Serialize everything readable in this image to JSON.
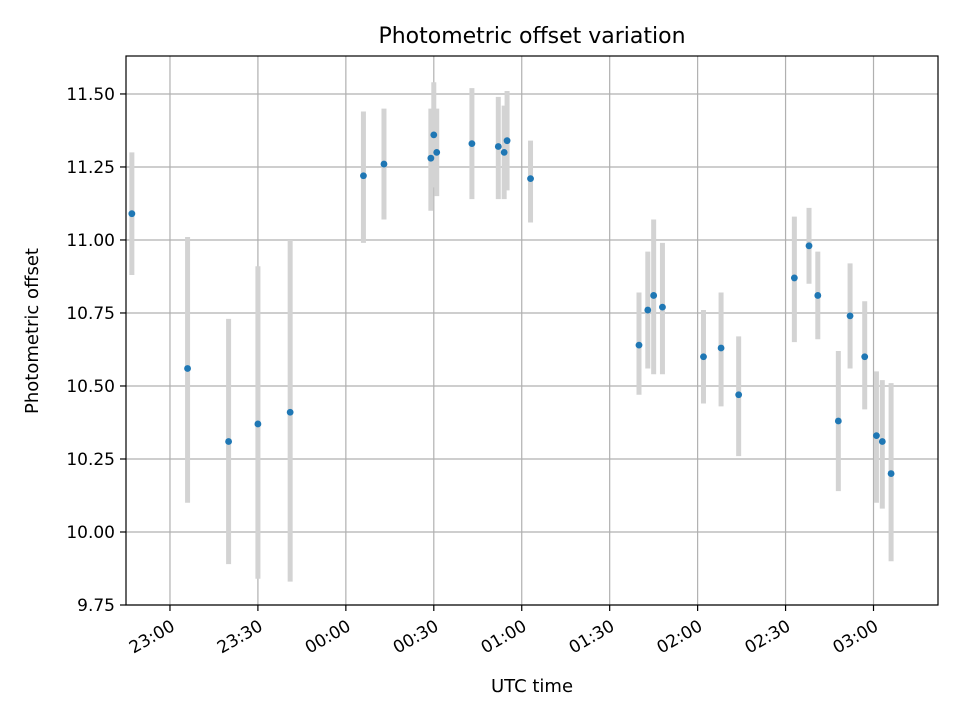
{
  "chart_data": {
    "type": "scatter",
    "title": "Photometric offset variation",
    "xlabel": "UTC time",
    "ylabel": "Photometric offset",
    "x_ticks": [
      "23:00",
      "23:30",
      "00:00",
      "00:30",
      "01:00",
      "01:30",
      "02:00",
      "02:30",
      "03:00"
    ],
    "y_ticks": [
      "9.75",
      "10.00",
      "10.25",
      "10.50",
      "10.75",
      "11.00",
      "11.25",
      "11.50"
    ],
    "ylim": [
      9.75,
      11.63
    ],
    "xlim": [
      "22:45",
      "03:22"
    ],
    "grid": true,
    "points": [
      {
        "x": "22:47",
        "y": 11.09,
        "ylow": 10.88,
        "yhigh": 11.3
      },
      {
        "x": "23:06",
        "y": 10.56,
        "ylow": 10.1,
        "yhigh": 11.01
      },
      {
        "x": "23:20",
        "y": 10.31,
        "ylow": 9.89,
        "yhigh": 10.73
      },
      {
        "x": "23:30",
        "y": 10.37,
        "ylow": 9.84,
        "yhigh": 10.91
      },
      {
        "x": "23:41",
        "y": 10.41,
        "ylow": 9.83,
        "yhigh": 11.0
      },
      {
        "x": "00:06",
        "y": 11.22,
        "ylow": 10.99,
        "yhigh": 11.44
      },
      {
        "x": "00:13",
        "y": 11.26,
        "ylow": 11.07,
        "yhigh": 11.45
      },
      {
        "x": "00:29",
        "y": 11.28,
        "ylow": 11.1,
        "yhigh": 11.45
      },
      {
        "x": "00:30",
        "y": 11.36,
        "ylow": 11.18,
        "yhigh": 11.54
      },
      {
        "x": "00:31",
        "y": 11.3,
        "ylow": 11.15,
        "yhigh": 11.45
      },
      {
        "x": "00:43",
        "y": 11.33,
        "ylow": 11.14,
        "yhigh": 11.52
      },
      {
        "x": "00:52",
        "y": 11.32,
        "ylow": 11.14,
        "yhigh": 11.49
      },
      {
        "x": "00:54",
        "y": 11.3,
        "ylow": 11.14,
        "yhigh": 11.46
      },
      {
        "x": "00:55",
        "y": 11.34,
        "ylow": 11.17,
        "yhigh": 11.51
      },
      {
        "x": "01:03",
        "y": 11.21,
        "ylow": 11.06,
        "yhigh": 11.34
      },
      {
        "x": "01:40",
        "y": 10.64,
        "ylow": 10.47,
        "yhigh": 10.82
      },
      {
        "x": "01:43",
        "y": 10.76,
        "ylow": 10.56,
        "yhigh": 10.96
      },
      {
        "x": "01:45",
        "y": 10.81,
        "ylow": 10.54,
        "yhigh": 11.07
      },
      {
        "x": "01:48",
        "y": 10.77,
        "ylow": 10.54,
        "yhigh": 10.99
      },
      {
        "x": "02:02",
        "y": 10.6,
        "ylow": 10.44,
        "yhigh": 10.76
      },
      {
        "x": "02:08",
        "y": 10.63,
        "ylow": 10.43,
        "yhigh": 10.82
      },
      {
        "x": "02:14",
        "y": 10.47,
        "ylow": 10.26,
        "yhigh": 10.67
      },
      {
        "x": "02:33",
        "y": 10.87,
        "ylow": 10.65,
        "yhigh": 11.08
      },
      {
        "x": "02:38",
        "y": 10.98,
        "ylow": 10.85,
        "yhigh": 11.11
      },
      {
        "x": "02:41",
        "y": 10.81,
        "ylow": 10.66,
        "yhigh": 10.96
      },
      {
        "x": "02:48",
        "y": 10.38,
        "ylow": 10.14,
        "yhigh": 10.62
      },
      {
        "x": "02:52",
        "y": 10.74,
        "ylow": 10.56,
        "yhigh": 10.92
      },
      {
        "x": "02:57",
        "y": 10.6,
        "ylow": 10.42,
        "yhigh": 10.79
      },
      {
        "x": "03:01",
        "y": 10.33,
        "ylow": 10.1,
        "yhigh": 10.55
      },
      {
        "x": "03:03",
        "y": 10.31,
        "ylow": 10.08,
        "yhigh": 10.52
      },
      {
        "x": "03:06",
        "y": 10.2,
        "ylow": 9.9,
        "yhigh": 10.51
      }
    ],
    "colors": {
      "point": "#1f77b4",
      "errorbar": "#d3d3d3",
      "grid": "#b0b0b0"
    }
  }
}
